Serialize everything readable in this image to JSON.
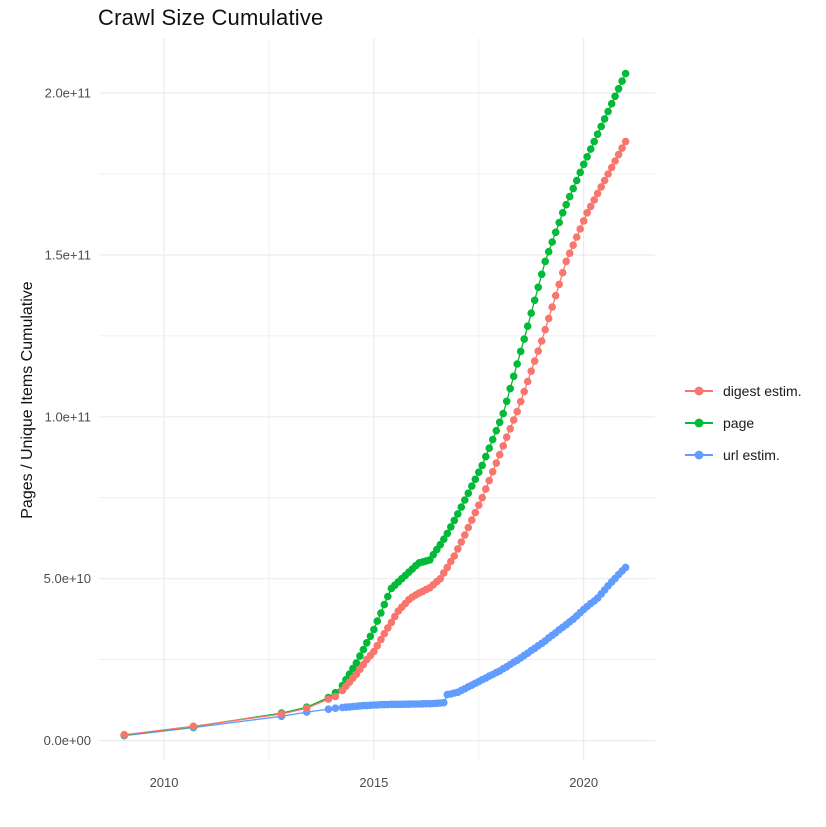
{
  "colors": {
    "background": "#ffffff",
    "grid": "#ebebeb",
    "tick_text": "#4d4d4d",
    "title_text": "#111111",
    "digest": "#F8766D",
    "page": "#00BA38",
    "url": "#619CFF"
  },
  "legend": {
    "items": [
      {
        "label": "digest estim.",
        "color": "#F8766D"
      },
      {
        "label": "page",
        "color": "#00BA38"
      },
      {
        "label": "url estim.",
        "color": "#619CFF"
      }
    ]
  },
  "chart_data": {
    "type": "scatter",
    "title": "Crawl Size Cumulative",
    "x_axis": {
      "label": "",
      "tick_values": [
        2010,
        2015,
        2020
      ],
      "tick_labels": [
        "2010",
        "2015",
        "2020"
      ],
      "minor_tick_values": [
        2012.5,
        2017.5
      ],
      "domain": [
        2008.45,
        2021.7
      ]
    },
    "y_axis": {
      "label": "Pages / Unique Items Cumulative",
      "value_unit": "1e9",
      "tick_values_e9": [
        0,
        50,
        100,
        150,
        200
      ],
      "tick_labels": [
        "0.0e+00",
        "5.0e+10",
        "1.0e+11",
        "1.5e+11",
        "2.0e+11"
      ],
      "minor_tick_values_e9": [
        25,
        75,
        125,
        175
      ],
      "domain_e9": [
        -6,
        217
      ]
    },
    "x_years": [
      2009.05,
      2010.7,
      2012.8,
      2013.4,
      2013.917,
      2014.083,
      2014.25,
      2014.333,
      2014.417,
      2014.5,
      2014.583,
      2014.667,
      2014.75,
      2014.833,
      2014.917,
      2015.0,
      2015.083,
      2015.167,
      2015.25,
      2015.333,
      2015.417,
      2015.5,
      2015.583,
      2015.667,
      2015.75,
      2015.833,
      2015.917,
      2016.0,
      2016.083,
      2016.167,
      2016.25,
      2016.333,
      2016.417,
      2016.5,
      2016.583,
      2016.667,
      2016.75,
      2016.833,
      2016.917,
      2017.0,
      2017.083,
      2017.167,
      2017.25,
      2017.333,
      2017.417,
      2017.5,
      2017.583,
      2017.667,
      2017.75,
      2017.833,
      2017.917,
      2018.0,
      2018.083,
      2018.167,
      2018.25,
      2018.333,
      2018.417,
      2018.5,
      2018.583,
      2018.667,
      2018.75,
      2018.833,
      2018.917,
      2019.0,
      2019.083,
      2019.167,
      2019.25,
      2019.333,
      2019.417,
      2019.5,
      2019.583,
      2019.667,
      2019.75,
      2019.833,
      2019.917,
      2020.0,
      2020.083,
      2020.167,
      2020.25,
      2020.333,
      2020.417,
      2020.5,
      2020.583,
      2020.667,
      2020.75,
      2020.833,
      2020.917,
      2021.0
    ],
    "series": [
      {
        "name": "digest estim.",
        "color": "#F8766D",
        "values_e9": [
          1.8,
          4.4,
          8.2,
          10.0,
          12.8,
          13.6,
          15.5,
          16.8,
          18,
          19.3,
          20.5,
          22,
          23.5,
          25,
          26.3,
          27.5,
          29.3,
          31.2,
          33,
          34.8,
          36.5,
          38.3,
          40,
          41.2,
          42.3,
          43.5,
          44.3,
          45,
          45.6,
          46.1,
          46.7,
          47.2,
          48.1,
          49.1,
          50,
          51.8,
          53.5,
          55.3,
          57,
          59.2,
          61.3,
          63.5,
          65.8,
          68.1,
          70.4,
          72.7,
          75,
          77.7,
          80.3,
          83,
          85.7,
          88.3,
          91,
          93.7,
          96.3,
          99,
          101.6,
          104.7,
          107.8,
          110.9,
          114.1,
          117.2,
          120.3,
          123.4,
          126.9,
          130.4,
          133.9,
          137.4,
          140.9,
          144.5,
          148,
          150.5,
          153,
          155.5,
          158,
          160.5,
          163,
          165,
          167,
          169,
          171,
          173,
          175,
          177,
          179,
          181,
          183,
          185
        ]
      },
      {
        "name": "page",
        "color": "#00BA38",
        "values_e9": [
          1.7,
          4.3,
          8.5,
          10.3,
          13.3,
          14.8,
          17,
          18.8,
          20.5,
          22.3,
          24,
          26.1,
          28.1,
          30.2,
          32.2,
          34.3,
          36.9,
          39.4,
          42,
          44.5,
          47,
          48,
          49,
          50,
          51,
          52,
          53,
          54,
          54.9,
          55.2,
          55.5,
          55.8,
          57.4,
          59,
          60.5,
          62.2,
          64,
          66,
          68,
          70,
          72.1,
          74.3,
          76.4,
          78.6,
          80.7,
          82.9,
          85,
          87.7,
          90.3,
          93,
          95.7,
          98.3,
          101,
          104.8,
          108.7,
          112.5,
          116.3,
          120.2,
          124,
          128,
          132,
          136,
          140,
          144,
          148,
          151,
          154,
          157,
          160,
          163,
          165.5,
          168,
          170.5,
          173,
          175.5,
          178,
          180.3,
          182.7,
          185,
          187.3,
          189.7,
          192,
          194.3,
          196.7,
          199,
          201.3,
          203.7,
          206
        ]
      },
      {
        "name": "url estim.",
        "color": "#619CFF",
        "values_e9": [
          1.5,
          4.0,
          7.5,
          8.8,
          9.7,
          10.0,
          10.2,
          10.3,
          10.4,
          10.5,
          10.6,
          10.7,
          10.8,
          10.8,
          10.9,
          11.0,
          11.0,
          11.1,
          11.1,
          11.1,
          11.2,
          11.2,
          11.2,
          11.2,
          11.25,
          11.25,
          11.3,
          11.3,
          11.3,
          11.35,
          11.4,
          11.4,
          11.45,
          11.5,
          11.6,
          11.7,
          14.2,
          14.4,
          14.7,
          14.9,
          15.5,
          16.0,
          16.6,
          17.1,
          17.7,
          18.2,
          18.8,
          19.3,
          19.9,
          20.4,
          21.0,
          21.5,
          22.2,
          22.8,
          23.5,
          24.2,
          24.8,
          25.5,
          26.3,
          27.0,
          27.8,
          28.5,
          29.3,
          30.0,
          30.8,
          31.7,
          32.5,
          33.3,
          34.2,
          35.0,
          35.8,
          36.7,
          37.5,
          38.5,
          39.5,
          40.5,
          41.4,
          42.3,
          43.1,
          44.0,
          45.3,
          46.5,
          47.8,
          49.0,
          50.1,
          51.3,
          52.4,
          53.5
        ]
      }
    ]
  }
}
